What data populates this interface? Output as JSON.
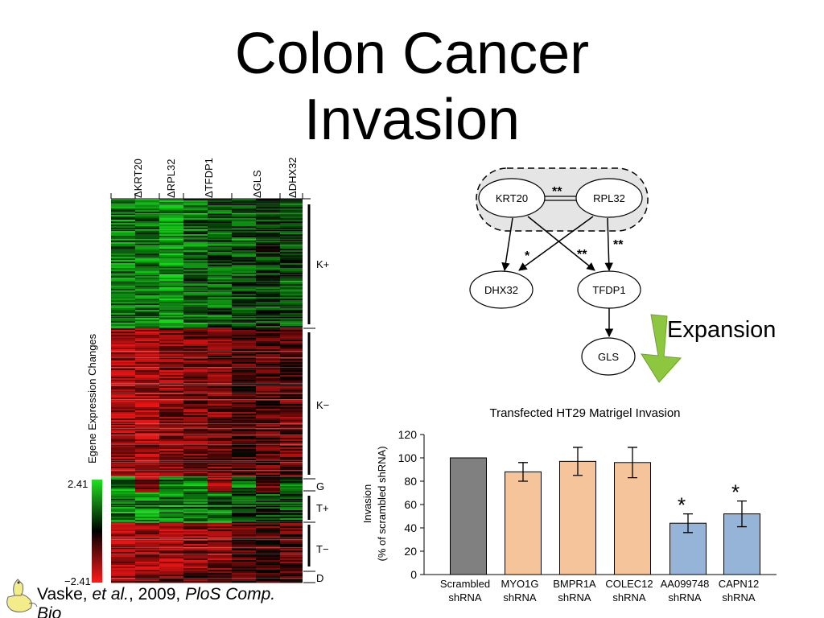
{
  "slide": {
    "title_line1": "Colon Cancer",
    "title_line2": "Invasion",
    "expansion_label": "Expansion",
    "citation": {
      "authors": "Vaske, ",
      "etal": "et al.",
      "year": ", 2009, ",
      "journal": "PloS Comp.",
      "journal_cont": "Bio"
    }
  },
  "heatmap": {
    "columns": [
      "ΔKRT20",
      "ΔRPL32",
      "ΔTFDP1",
      "ΔGLS",
      "ΔDHX32"
    ],
    "y_label": "Egene Expression Changes",
    "scale_max": "2.41",
    "scale_min": "−2.41",
    "clusters": [
      "K+",
      "K−",
      "G",
      "T+",
      "T−",
      "D"
    ],
    "colors": {
      "up": "#1fd21f",
      "down": "#e01818",
      "zero": "#000000"
    }
  },
  "network": {
    "nodes": [
      "KRT20",
      "RPL32",
      "DHX32",
      "TFDP1",
      "GLS"
    ],
    "significance": {
      "krt20_rpl32": "**",
      "krt20_dhx32": "*",
      "rpl32_tfdp1_left": "**",
      "rpl32_tfdp1_right": "**"
    },
    "arrow_color": "#8dc63f"
  },
  "chart_data": {
    "type": "bar",
    "title": "Transfected HT29 Matrigel Invasion",
    "ylabel_line1": "Invasion",
    "ylabel_line2": "(% of scrambled shRNA)",
    "ylim": [
      0,
      120
    ],
    "yticks": [
      "0",
      "20",
      "40",
      "60",
      "80",
      "100",
      "120"
    ],
    "categories": [
      [
        "Scrambled",
        "shRNA"
      ],
      [
        "MYO1G",
        "shRNA"
      ],
      [
        "BMPR1A",
        "shRNA"
      ],
      [
        "COLEC12",
        "shRNA"
      ],
      [
        "AA099748",
        "shRNA"
      ],
      [
        "CAPN12",
        "shRNA"
      ]
    ],
    "values": [
      100,
      88,
      97,
      96,
      44,
      52
    ],
    "errors": [
      0,
      8,
      12,
      13,
      8,
      11
    ],
    "significant": [
      "",
      "",
      "",
      "",
      "*",
      "*"
    ],
    "colors": [
      "#808080",
      "#f6c49a",
      "#f6c49a",
      "#f6c49a",
      "#96b4d8",
      "#96b4d8"
    ],
    "grid": false
  }
}
